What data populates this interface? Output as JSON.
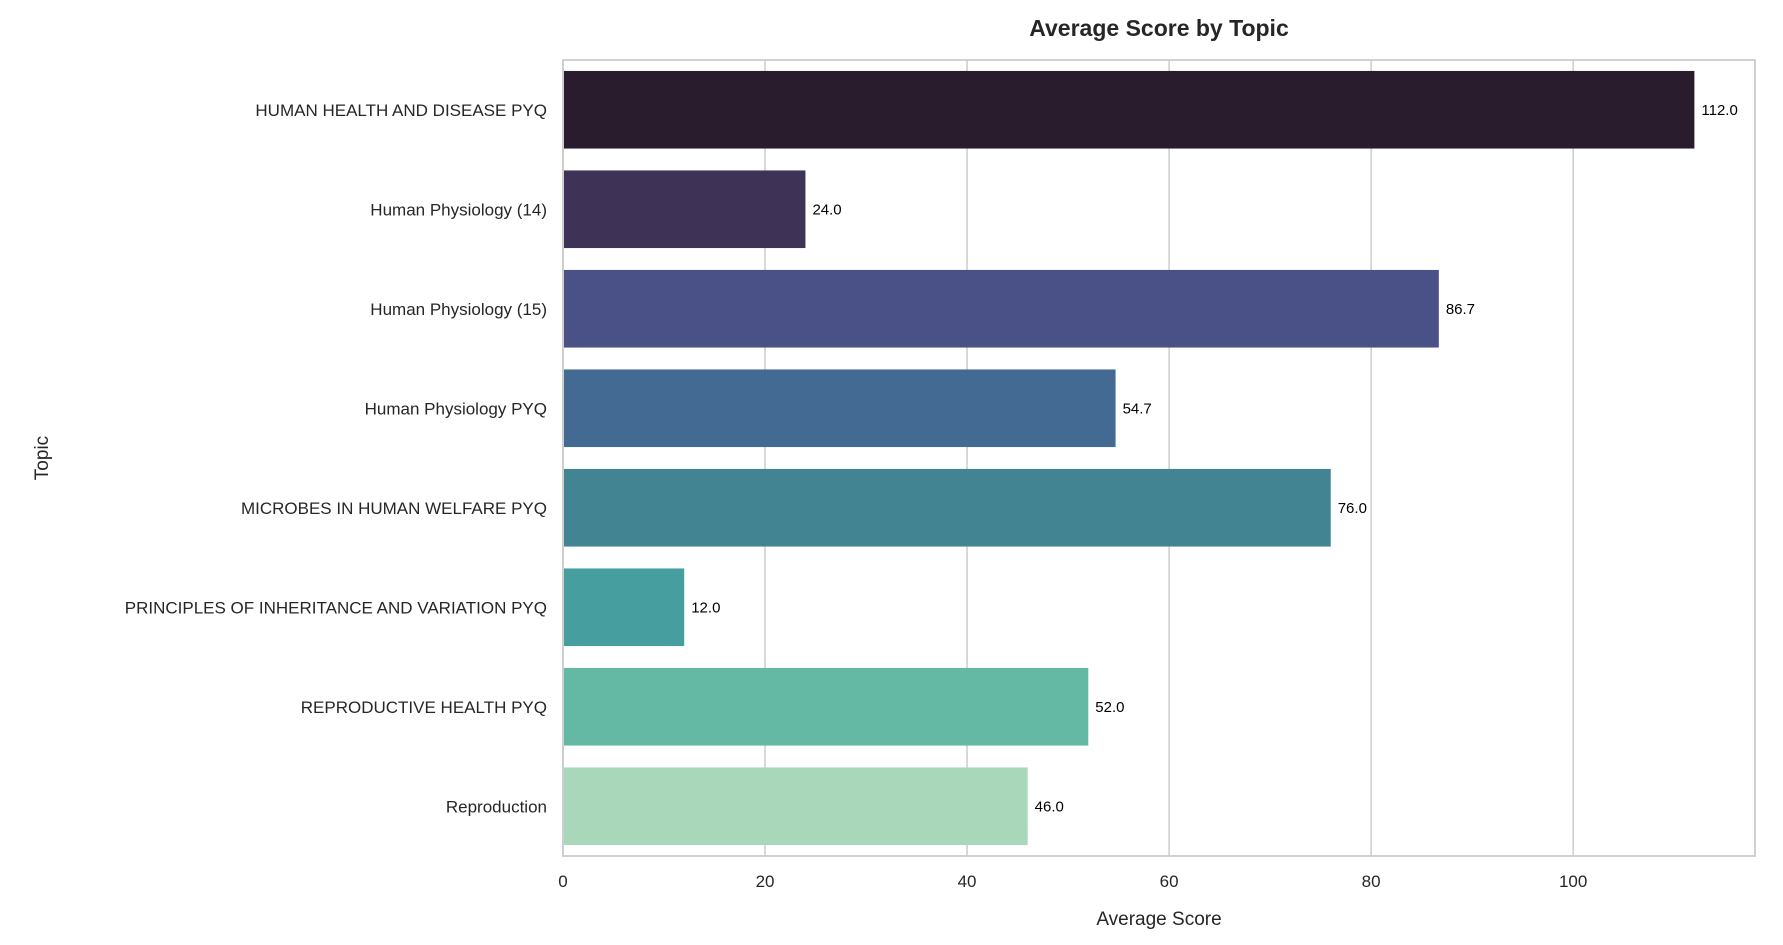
{
  "chart_data": {
    "type": "bar",
    "orientation": "horizontal",
    "title": "Average Score by Topic",
    "xlabel": "Average Score",
    "ylabel": "Topic",
    "xlim": [
      0,
      118
    ],
    "xticks": [
      0,
      20,
      40,
      60,
      80,
      100
    ],
    "grid": true,
    "categories": [
      "HUMAN HEALTH AND DISEASE PYQ",
      "Human Physiology (14)",
      "Human Physiology (15)",
      "Human Physiology PYQ",
      "MICROBES IN HUMAN WELFARE  PYQ",
      "PRINCIPLES OF INHERITANCE AND VARIATION PYQ",
      "REPRODUCTIVE HEALTH PYQ",
      "Reproduction"
    ],
    "values": [
      112.0,
      24.0,
      86.7,
      54.7,
      76.0,
      12.0,
      52.0,
      46.0
    ],
    "data_labels": [
      "112.0",
      "24.0",
      "86.7",
      "54.7",
      "76.0",
      "12.0",
      "52.0",
      "46.0"
    ],
    "colors": [
      "#291d2d",
      "#3e3257",
      "#4a5186",
      "#426a93",
      "#438493",
      "#479e9e",
      "#63b9a4",
      "#a8d8b9"
    ]
  }
}
